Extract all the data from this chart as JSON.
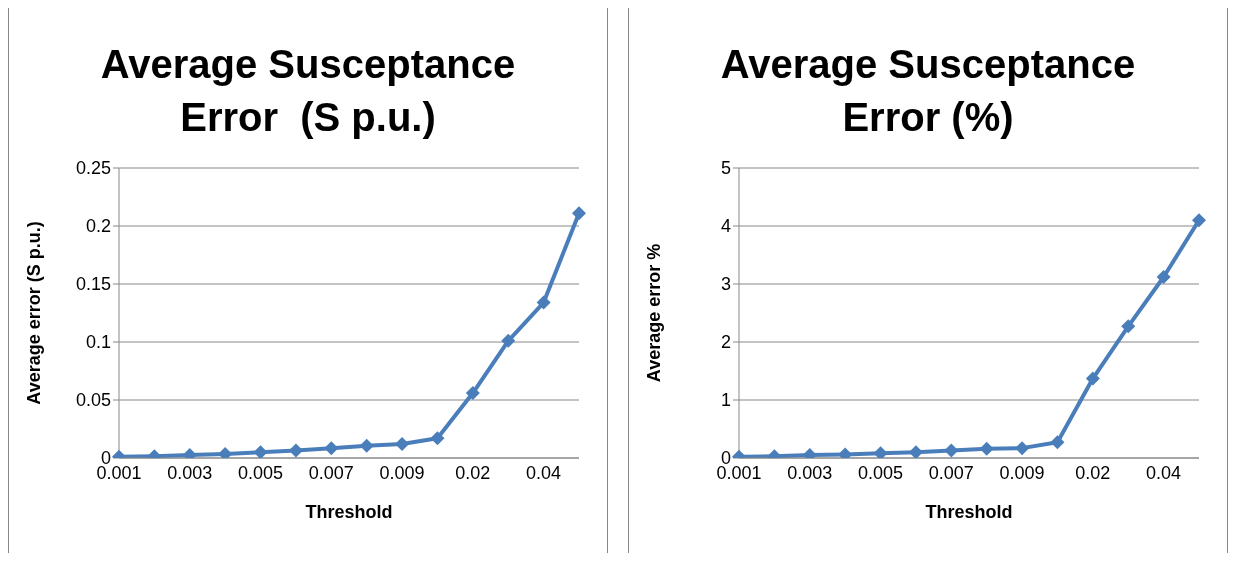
{
  "chart_data": [
    {
      "type": "line",
      "title": "Average Susceptance Error  (S p.u.)",
      "xlabel": "Threshold",
      "ylabel": "Average error (S p.u.)",
      "categories": [
        "0.001",
        null,
        "0.003",
        null,
        "0.005",
        null,
        "0.007",
        null,
        "0.009",
        null,
        "0.02",
        null,
        "0.04",
        null
      ],
      "series": [
        {
          "color": "#4a7ebb",
          "values": [
            0.001,
            0.0015,
            0.0025,
            0.0035,
            0.005,
            0.0065,
            0.0085,
            0.0105,
            0.012,
            0.017,
            0.056,
            0.101,
            0.134,
            0.211
          ]
        }
      ],
      "ylim": [
        0,
        0.25
      ],
      "yticks": [
        0,
        0.05,
        0.1,
        0.15,
        0.2,
        0.25
      ],
      "grid": "y",
      "legend": false,
      "marker": "diamond",
      "line_style": "solid"
    },
    {
      "type": "line",
      "title": "Average Susceptance Error (%)",
      "xlabel": "Threshold",
      "ylabel": "Average error %",
      "categories": [
        "0.001",
        null,
        "0.003",
        null,
        "0.005",
        null,
        "0.007",
        null,
        "0.009",
        null,
        "0.02",
        null,
        "0.04",
        null
      ],
      "series": [
        {
          "color": "#4a7ebb",
          "values": [
            0.02,
            0.03,
            0.05,
            0.06,
            0.08,
            0.1,
            0.13,
            0.16,
            0.17,
            0.27,
            1.37,
            2.27,
            3.12,
            4.1
          ]
        }
      ],
      "ylim": [
        0,
        5
      ],
      "yticks": [
        0,
        1,
        2,
        3,
        4,
        5
      ],
      "grid": "y",
      "legend": false,
      "marker": "diamond",
      "line_style": "solid"
    }
  ]
}
